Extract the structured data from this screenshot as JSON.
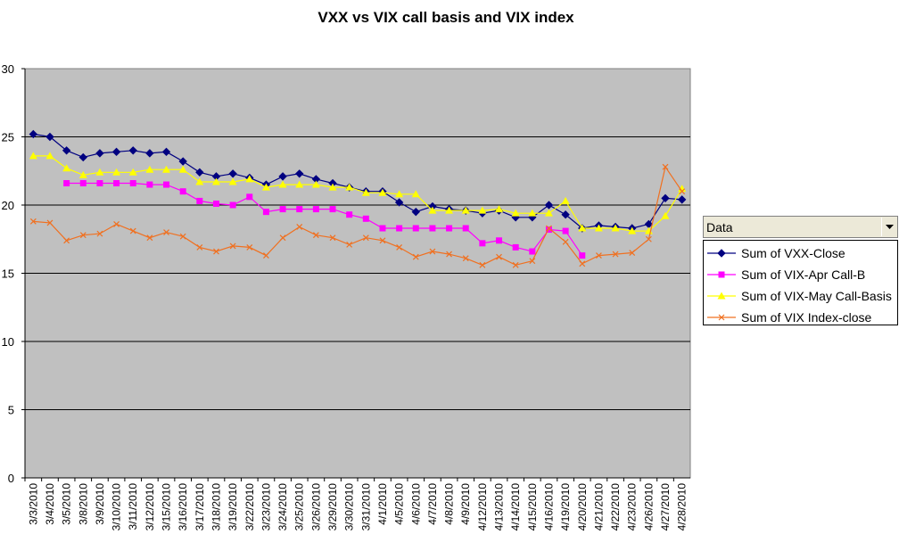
{
  "chart_data": {
    "type": "line",
    "title": "VXX vs VIX call basis and VIX index",
    "xlabel": "",
    "ylabel": "",
    "ylim": [
      0,
      30
    ],
    "yticks": [
      0,
      5,
      10,
      15,
      20,
      25,
      30
    ],
    "grid": true,
    "plot_background": "#c0c0c0",
    "legend_placement": "right",
    "categories": [
      "3/3/2010",
      "3/4/2010",
      "3/5/2010",
      "3/8/2010",
      "3/9/2010",
      "3/10/2010",
      "3/11/2010",
      "3/12/2010",
      "3/15/2010",
      "3/16/2010",
      "3/17/2010",
      "3/18/2010",
      "3/19/2010",
      "3/22/2010",
      "3/23/2010",
      "3/24/2010",
      "3/25/2010",
      "3/26/2010",
      "3/29/2010",
      "3/30/2010",
      "3/31/2010",
      "4/1/2010",
      "4/5/2010",
      "4/6/2010",
      "4/7/2010",
      "4/8/2010",
      "4/9/2010",
      "4/12/2010",
      "4/13/2010",
      "4/14/2010",
      "4/15/2010",
      "4/16/2010",
      "4/19/2010",
      "4/20/2010",
      "4/21/2010",
      "4/22/2010",
      "4/23/2010",
      "4/26/2010",
      "4/27/2010",
      "4/28/2010"
    ],
    "series": [
      {
        "name": "Sum of VXX-Close",
        "color": "#000080",
        "marker": "diamond",
        "values": [
          25.2,
          25.0,
          24.0,
          23.5,
          23.8,
          23.9,
          24.0,
          23.8,
          23.9,
          23.2,
          22.4,
          22.1,
          22.3,
          22.0,
          21.5,
          22.1,
          22.3,
          21.9,
          21.6,
          21.3,
          21.0,
          21.0,
          20.2,
          19.5,
          19.9,
          19.7,
          19.6,
          19.4,
          19.6,
          19.1,
          19.1,
          20.0,
          19.3,
          18.3,
          18.5,
          18.4,
          18.3,
          18.6,
          20.5,
          20.4
        ]
      },
      {
        "name": "Sum of VIX-Apr Call-B",
        "color": "#ff00ff",
        "marker": "square",
        "values": [
          null,
          null,
          21.6,
          21.6,
          21.6,
          21.6,
          21.6,
          21.5,
          21.5,
          21.0,
          20.3,
          20.1,
          20.0,
          20.6,
          19.5,
          19.7,
          19.7,
          19.7,
          19.7,
          19.3,
          19.0,
          18.3,
          18.3,
          18.3,
          18.3,
          18.3,
          18.3,
          17.2,
          17.4,
          16.9,
          16.6,
          18.2,
          18.1,
          16.3,
          null,
          null,
          null,
          null,
          null,
          null
        ]
      },
      {
        "name": "Sum of VIX-May Call-Basis",
        "color": "#ffff00",
        "marker": "triangle",
        "values": [
          23.6,
          23.6,
          22.7,
          22.2,
          22.4,
          22.4,
          22.4,
          22.6,
          22.6,
          22.6,
          21.7,
          21.7,
          21.7,
          21.9,
          21.3,
          21.5,
          21.5,
          21.5,
          21.3,
          21.3,
          20.9,
          20.9,
          20.8,
          20.8,
          19.6,
          19.6,
          19.6,
          19.6,
          19.7,
          19.4,
          19.4,
          19.4,
          20.3,
          18.3,
          18.3,
          18.3,
          18.1,
          18.1,
          19.2,
          21.2
        ]
      },
      {
        "name": "Sum of VIX Index-close",
        "color": "#f07020",
        "marker": "x",
        "values": [
          18.8,
          18.7,
          17.4,
          17.8,
          17.9,
          18.6,
          18.1,
          17.6,
          18.0,
          17.7,
          16.9,
          16.6,
          17.0,
          16.9,
          16.3,
          17.6,
          18.4,
          17.8,
          17.6,
          17.1,
          17.6,
          17.4,
          16.9,
          16.2,
          16.6,
          16.4,
          16.1,
          15.6,
          16.2,
          15.6,
          15.9,
          18.3,
          17.3,
          15.7,
          16.3,
          16.4,
          16.5,
          17.5,
          22.8,
          21.0
        ]
      }
    ]
  },
  "legend": {
    "header": "Data",
    "items": [
      {
        "label": "Sum of VXX-Close"
      },
      {
        "label": "Sum of VIX-Apr Call-B"
      },
      {
        "label": "Sum of VIX-May Call-Basis"
      },
      {
        "label": "Sum of VIX Index-close"
      }
    ]
  }
}
